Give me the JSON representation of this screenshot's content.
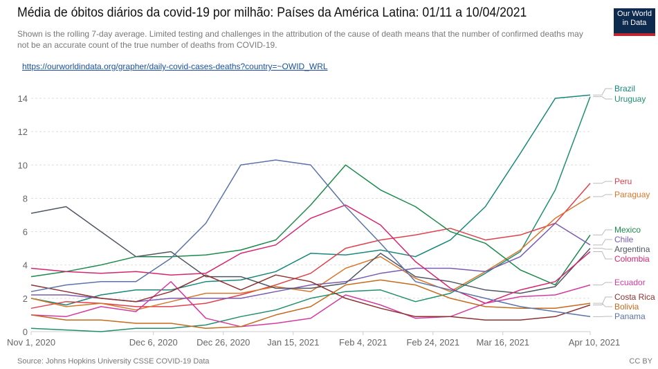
{
  "header": {
    "title": "Média de óbitos diários da covid-19 por milhão: Países da América Latina: 01/11 a 10/04/2021",
    "subtitle": "Shown is the rolling 7-day average. Limited testing and challenges in the attribution of the cause of death means that the number of confirmed deaths may not be an accurate count of the true number of deaths from COVID-19.",
    "link": "https://ourworldindata.org/grapher/daily-covid-cases-deaths?country=~OWID_WRL",
    "logo": "Our World in Data"
  },
  "footer": {
    "source": "Source: Johns Hopkins University CSSE COVID-19 Data",
    "license": "CC BY"
  },
  "chart_data": {
    "type": "line",
    "title": "Média de óbitos diários da covid-19 por milhão: Países da América Latina: 01/11 a 10/04/2021",
    "xlabel": "",
    "ylabel": "",
    "ylim": [
      0,
      14.8
    ],
    "yticks": [
      0,
      2,
      4,
      6,
      8,
      10,
      12,
      14
    ],
    "grid": "horizontal dashed",
    "legend": "right, end-of-line labels",
    "xticks": [
      {
        "date": "2020-11-01",
        "label": "Nov 1, 2020"
      },
      {
        "date": "2020-12-06",
        "label": "Dec 6, 2020"
      },
      {
        "date": "2020-12-26",
        "label": "Dec 26, 2020"
      },
      {
        "date": "2021-01-15",
        "label": "Jan 15, 2021"
      },
      {
        "date": "2021-02-04",
        "label": "Feb 4, 2021"
      },
      {
        "date": "2021-02-24",
        "label": "Feb 24, 2021"
      },
      {
        "date": "2021-03-16",
        "label": "Mar 16, 2021"
      },
      {
        "date": "2021-04-10",
        "label": "Apr 10, 2021"
      }
    ],
    "x": [
      "2020-11-01",
      "2020-11-11",
      "2020-11-21",
      "2020-12-01",
      "2020-12-11",
      "2020-12-21",
      "2020-12-31",
      "2021-01-10",
      "2021-01-20",
      "2021-01-30",
      "2021-02-09",
      "2021-02-19",
      "2021-03-01",
      "2021-03-11",
      "2021-03-21",
      "2021-03-31",
      "2021-04-10"
    ],
    "series": [
      {
        "name": "Brazil",
        "color": "#16877a",
        "values": [
          2.0,
          1.6,
          2.2,
          2.5,
          2.5,
          3.0,
          3.1,
          3.6,
          4.7,
          4.6,
          4.9,
          4.5,
          5.5,
          7.5,
          10.7,
          14.0,
          14.2
        ]
      },
      {
        "name": "Uruguay",
        "color": "#1f8f6e",
        "values": [
          0.2,
          0.1,
          0.0,
          0.2,
          0.2,
          0.4,
          0.9,
          1.3,
          2.0,
          2.4,
          2.5,
          1.8,
          2.3,
          3.5,
          4.8,
          8.5,
          14.1
        ]
      },
      {
        "name": "Peru",
        "color": "#e0404a",
        "values": [
          1.4,
          1.8,
          1.7,
          1.5,
          1.5,
          1.7,
          2.2,
          2.8,
          3.5,
          5.0,
          5.5,
          5.8,
          6.2,
          5.5,
          5.8,
          6.5,
          8.9
        ]
      },
      {
        "name": "Paraguay",
        "color": "#d9762b",
        "values": [
          2.0,
          1.5,
          1.7,
          1.3,
          1.8,
          2.3,
          2.3,
          2.7,
          2.4,
          3.8,
          4.5,
          3.2,
          2.4,
          3.6,
          4.9,
          6.8,
          8.1
        ]
      },
      {
        "name": "Mexico",
        "color": "#1b8a4b",
        "values": [
          3.3,
          3.6,
          4.0,
          4.5,
          4.5,
          4.6,
          4.9,
          5.5,
          7.6,
          10.0,
          8.5,
          7.5,
          6.0,
          5.3,
          3.7,
          2.8,
          5.8
        ]
      },
      {
        "name": "Chile",
        "color": "#7a5ab0",
        "values": [
          2.2,
          2.2,
          2.0,
          1.8,
          2.0,
          2.0,
          2.0,
          2.4,
          2.8,
          3.0,
          3.5,
          3.8,
          3.8,
          3.6,
          4.5,
          6.5,
          5.2
        ]
      },
      {
        "name": "Argentina",
        "color": "#4f5661",
        "values": [
          7.1,
          7.5,
          6.0,
          4.5,
          4.8,
          3.3,
          3.3,
          2.6,
          2.6,
          2.9,
          4.7,
          3.3,
          3.0,
          2.5,
          2.3,
          2.7,
          5.0
        ]
      },
      {
        "name": "Colombia",
        "color": "#d6246e",
        "values": [
          3.8,
          3.6,
          3.5,
          3.6,
          3.4,
          3.5,
          4.7,
          5.2,
          6.8,
          7.6,
          6.4,
          4.2,
          2.6,
          1.7,
          2.5,
          3.0,
          4.8
        ]
      },
      {
        "name": "Ecuador",
        "color": "#d33a9f",
        "values": [
          1.0,
          0.9,
          1.5,
          1.2,
          3.0,
          0.8,
          0.3,
          0.5,
          0.8,
          2.2,
          1.6,
          0.8,
          0.9,
          1.7,
          2.1,
          2.2,
          2.8
        ]
      },
      {
        "name": "Costa Rica",
        "color": "#8c3030",
        "values": [
          2.8,
          2.4,
          2.0,
          1.8,
          2.4,
          3.4,
          2.5,
          3.4,
          3.0,
          2.0,
          1.4,
          0.9,
          0.9,
          0.7,
          0.7,
          0.9,
          1.6
        ]
      },
      {
        "name": "Bolivia",
        "color": "#c46a1c",
        "values": [
          1.0,
          0.7,
          0.7,
          0.5,
          0.5,
          0.2,
          0.3,
          1.0,
          1.5,
          2.8,
          3.1,
          2.8,
          2.0,
          1.5,
          1.4,
          1.4,
          1.7
        ]
      },
      {
        "name": "Panama",
        "color": "#5a72a8",
        "values": [
          2.4,
          2.8,
          3.0,
          3.0,
          4.4,
          6.5,
          10.0,
          10.3,
          10.0,
          7.5,
          5.3,
          3.0,
          2.5,
          2.0,
          1.5,
          1.2,
          0.9
        ]
      }
    ]
  }
}
